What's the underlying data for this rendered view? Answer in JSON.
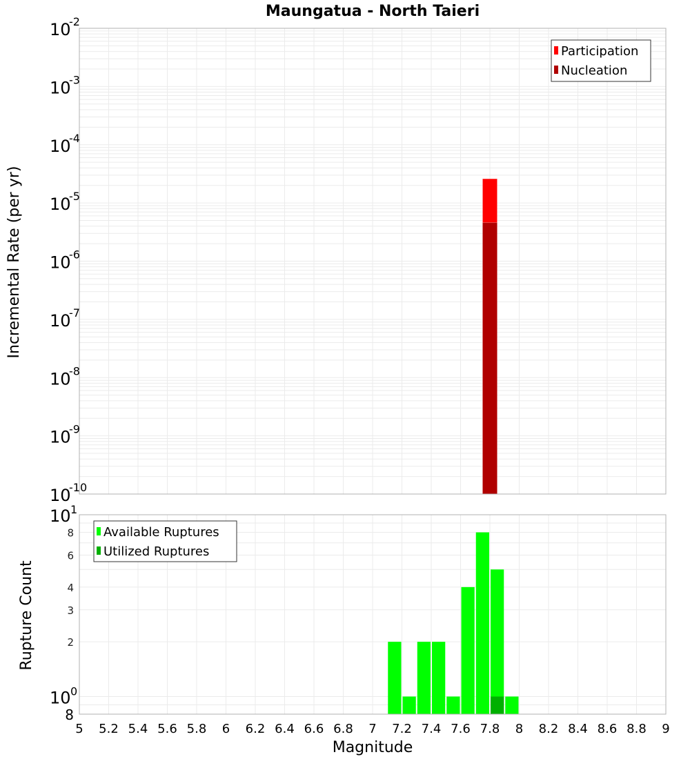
{
  "title": "Maungatua - North Taieri",
  "colors": {
    "participation": "#ff0000",
    "nucleation": "#b00000",
    "available": "#00ff00",
    "utilized": "#00b000",
    "grid": "#ebebeb",
    "frame": "#b0b0b0"
  },
  "chart_data": [
    {
      "type": "bar",
      "title": "Maungatua - North Taieri",
      "xlabel": "Magnitude",
      "ylabel": "Incremental Rate (per yr)",
      "yscale": "log",
      "ylim": [
        1e-10,
        0.01
      ],
      "xlim": [
        5,
        9
      ],
      "grid": true,
      "legend_position": "top-right",
      "legend": [
        "Participation",
        "Nucleation"
      ],
      "y_tick_labels": [
        "10^-2",
        "10^-3",
        "10^-4",
        "10^-5",
        "10^-6",
        "10^-7",
        "10^-8",
        "10^-9",
        "10^-10"
      ],
      "series": [
        {
          "name": "Participation",
          "bins": [
            {
              "x": 7.8,
              "x0": 7.75,
              "x1": 7.85,
              "value": 2.6e-05
            }
          ]
        },
        {
          "name": "Nucleation",
          "bins": [
            {
              "x": 7.8,
              "x0": 7.75,
              "x1": 7.85,
              "value": 4.6e-06
            }
          ]
        }
      ]
    },
    {
      "type": "bar",
      "xlabel": "Magnitude",
      "ylabel": "Rupture Count",
      "yscale": "log",
      "ylim": [
        0.8,
        10
      ],
      "xlim": [
        5,
        9
      ],
      "grid": true,
      "legend_position": "top-left",
      "legend": [
        "Available Ruptures",
        "Utilized Ruptures"
      ],
      "x_tick_labels": [
        "5",
        "5.2",
        "5.4",
        "5.6",
        "5.8",
        "6",
        "6.2",
        "6.4",
        "6.6",
        "6.8",
        "7",
        "7.2",
        "7.4",
        "7.6",
        "7.8",
        "8",
        "8.2",
        "8.4",
        "8.6",
        "8.8",
        "9"
      ],
      "y_tick_labels": [
        "10^1",
        "8",
        "6",
        "4",
        "3",
        "2",
        "10^0",
        "8"
      ],
      "categories": [
        7.15,
        7.25,
        7.35,
        7.45,
        7.55,
        7.65,
        7.75,
        7.85,
        7.95
      ],
      "series": [
        {
          "name": "Available Ruptures",
          "values": [
            2,
            1,
            2,
            2,
            1,
            4,
            8,
            5,
            1
          ]
        },
        {
          "name": "Utilized Ruptures",
          "values": [
            0,
            0,
            0,
            0,
            0,
            0,
            0,
            1,
            0
          ]
        }
      ]
    }
  ],
  "top_plot": {
    "ylabel": "Incremental Rate (per yr)",
    "yticks": [
      {
        "base": "10",
        "exp": "-2"
      },
      {
        "base": "10",
        "exp": "-3"
      },
      {
        "base": "10",
        "exp": "-4"
      },
      {
        "base": "10",
        "exp": "-5"
      },
      {
        "base": "10",
        "exp": "-6"
      },
      {
        "base": "10",
        "exp": "-7"
      },
      {
        "base": "10",
        "exp": "-8"
      },
      {
        "base": "10",
        "exp": "-9"
      },
      {
        "base": "10",
        "exp": "-10"
      }
    ],
    "legend": [
      {
        "label": "Participation"
      },
      {
        "label": "Nucleation"
      }
    ]
  },
  "bottom_plot": {
    "ylabel": "Rupture Count",
    "xlabel": "Magnitude",
    "ytick_top": {
      "base": "10",
      "exp": "1"
    },
    "ytick_mid": {
      "base": "10",
      "exp": "0"
    },
    "ytick_minor": [
      "8",
      "6",
      "4",
      "3",
      "2"
    ],
    "ytick_bottom": "8",
    "xticks": [
      "5",
      "5.2",
      "5.4",
      "5.6",
      "5.8",
      "6",
      "6.2",
      "6.4",
      "6.6",
      "6.8",
      "7",
      "7.2",
      "7.4",
      "7.6",
      "7.8",
      "8",
      "8.2",
      "8.4",
      "8.6",
      "8.8",
      "9"
    ],
    "legend": [
      {
        "label": "Available Ruptures"
      },
      {
        "label": "Utilized Ruptures"
      }
    ]
  }
}
